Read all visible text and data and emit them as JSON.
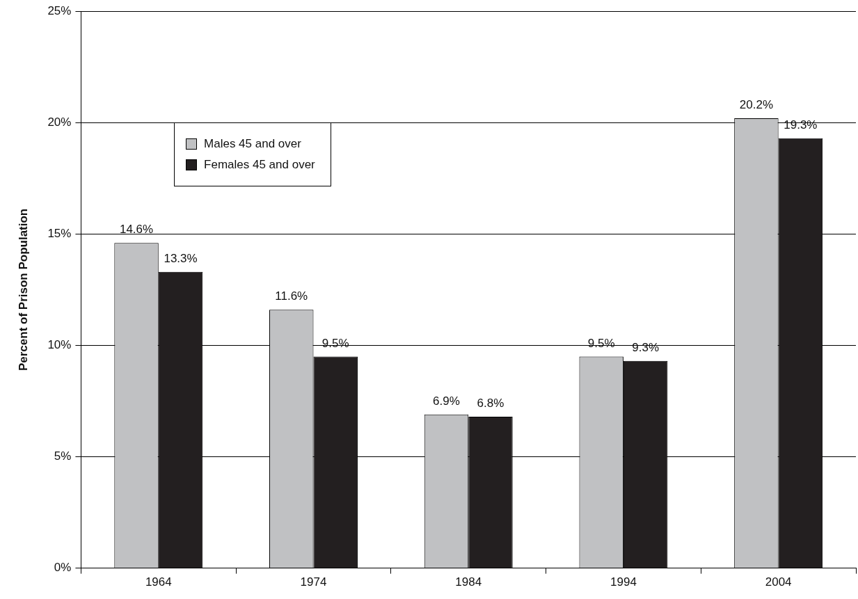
{
  "chart_data": {
    "type": "bar",
    "ylabel": "Percent of Prison Population",
    "categories": [
      "1964",
      "1974",
      "1984",
      "1994",
      "2004"
    ],
    "series": [
      {
        "name": "Males 45 and over",
        "color": "#c0c1c3",
        "values": [
          14.6,
          11.6,
          6.9,
          9.5,
          20.2
        ],
        "value_labels": [
          "14.6%",
          "11.6%",
          "6.9%",
          "9.5%",
          "20.2%"
        ]
      },
      {
        "name": "Females 45 and over",
        "color": "#231f20",
        "values": [
          13.3,
          9.5,
          6.8,
          9.3,
          19.3
        ],
        "value_labels": [
          "13.3%",
          "9.5%",
          "6.8%",
          "9.3%",
          "19.3%"
        ]
      }
    ],
    "ylim": [
      0,
      25
    ],
    "yticks": [
      {
        "value": 0,
        "label": "0%"
      },
      {
        "value": 5,
        "label": "5%"
      },
      {
        "value": 10,
        "label": "10%"
      },
      {
        "value": 15,
        "label": "15%"
      },
      {
        "value": 20,
        "label": "20%"
      },
      {
        "value": 25,
        "label": "25%"
      }
    ],
    "grid": "y",
    "legend": "top left"
  }
}
